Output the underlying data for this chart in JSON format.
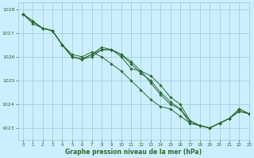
{
  "title": "Graphe pression niveau de la mer (hPa)",
  "bg_color": "#cceeff",
  "grid_color": "#99cccc",
  "line_color": "#2d6a2d",
  "marker_color": "#2d6a2d",
  "xlim": [
    -0.5,
    23
  ],
  "ylim": [
    1022.5,
    1028.3
  ],
  "yticks": [
    1023,
    1024,
    1025,
    1026,
    1027,
    1028
  ],
  "xticks": [
    0,
    1,
    2,
    3,
    4,
    5,
    6,
    7,
    8,
    9,
    10,
    11,
    12,
    13,
    14,
    15,
    16,
    17,
    18,
    19,
    20,
    21,
    22,
    23
  ],
  "series": [
    [
      1027.8,
      1027.5,
      1027.2,
      1027.1,
      1026.5,
      1026.0,
      1025.9,
      1026.0,
      1026.3,
      1026.3,
      1026.0,
      1025.5,
      1025.4,
      1024.9,
      1024.4,
      1024.0,
      1023.8,
      1023.2,
      1023.1,
      1023.0,
      1023.2,
      1023.4,
      1023.7,
      1023.6
    ],
    [
      1027.8,
      1027.5,
      1027.2,
      1027.1,
      1026.5,
      1026.0,
      1025.9,
      1026.1,
      1026.3,
      1026.3,
      1026.1,
      1025.8,
      1025.4,
      1025.2,
      1024.8,
      1024.3,
      1024.0,
      1023.3,
      1023.1,
      1023.0,
      1023.2,
      1023.4,
      1023.7,
      1023.6
    ],
    [
      1027.8,
      1027.5,
      1027.2,
      1027.1,
      1026.5,
      1026.1,
      1026.0,
      1026.2,
      1026.0,
      1025.7,
      1025.4,
      1025.0,
      1024.6,
      1024.2,
      1023.9,
      1023.8,
      1023.5,
      1023.2,
      1023.1,
      1023.0,
      1023.2,
      1023.4,
      1023.8,
      1023.6
    ],
    [
      1027.8,
      1027.4,
      1027.2,
      1027.1,
      1026.5,
      1026.0,
      1025.9,
      1026.1,
      1026.4,
      1026.3,
      1026.1,
      1025.7,
      1025.3,
      1025.0,
      1024.5,
      1024.1,
      1023.8,
      1023.3,
      1023.1,
      1023.0,
      1023.2,
      1023.4,
      1023.8,
      1023.6
    ]
  ],
  "marker_series": [
    0,
    1,
    2,
    3
  ]
}
